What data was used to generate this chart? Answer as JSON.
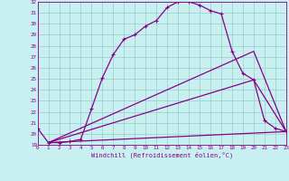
{
  "xlabel": "Windchill (Refroidissement éolien,°C)",
  "bg_color": "#c8f0f0",
  "line_color": "#880088",
  "grid_color": "#99cccc",
  "ylim": [
    19,
    32
  ],
  "xlim": [
    0,
    23
  ],
  "yticks": [
    19,
    20,
    21,
    22,
    23,
    24,
    25,
    26,
    27,
    28,
    29,
    30,
    31,
    32
  ],
  "xticks": [
    0,
    1,
    2,
    3,
    4,
    5,
    6,
    7,
    8,
    9,
    10,
    11,
    12,
    13,
    14,
    15,
    16,
    17,
    18,
    19,
    20,
    21,
    22,
    23
  ],
  "curve1_x": [
    0,
    1,
    2,
    3,
    4,
    5,
    6,
    7,
    8,
    9,
    10,
    11,
    12,
    13,
    14,
    15,
    16,
    17,
    18,
    19,
    20,
    21,
    22,
    23
  ],
  "curve1_y": [
    20.5,
    19.2,
    19.2,
    19.3,
    19.5,
    22.3,
    25.1,
    27.2,
    28.6,
    29.0,
    29.8,
    30.3,
    31.5,
    32.0,
    32.0,
    31.7,
    31.2,
    30.9,
    27.5,
    25.5,
    24.9,
    21.2,
    20.5,
    20.2
  ],
  "line1_x": [
    1,
    23
  ],
  "line1_y": [
    19.2,
    20.2
  ],
  "line2_x": [
    1,
    20,
    23
  ],
  "line2_y": [
    19.2,
    24.9,
    20.2
  ],
  "line3_x": [
    1,
    20,
    23
  ],
  "line3_y": [
    19.2,
    27.5,
    20.2
  ]
}
